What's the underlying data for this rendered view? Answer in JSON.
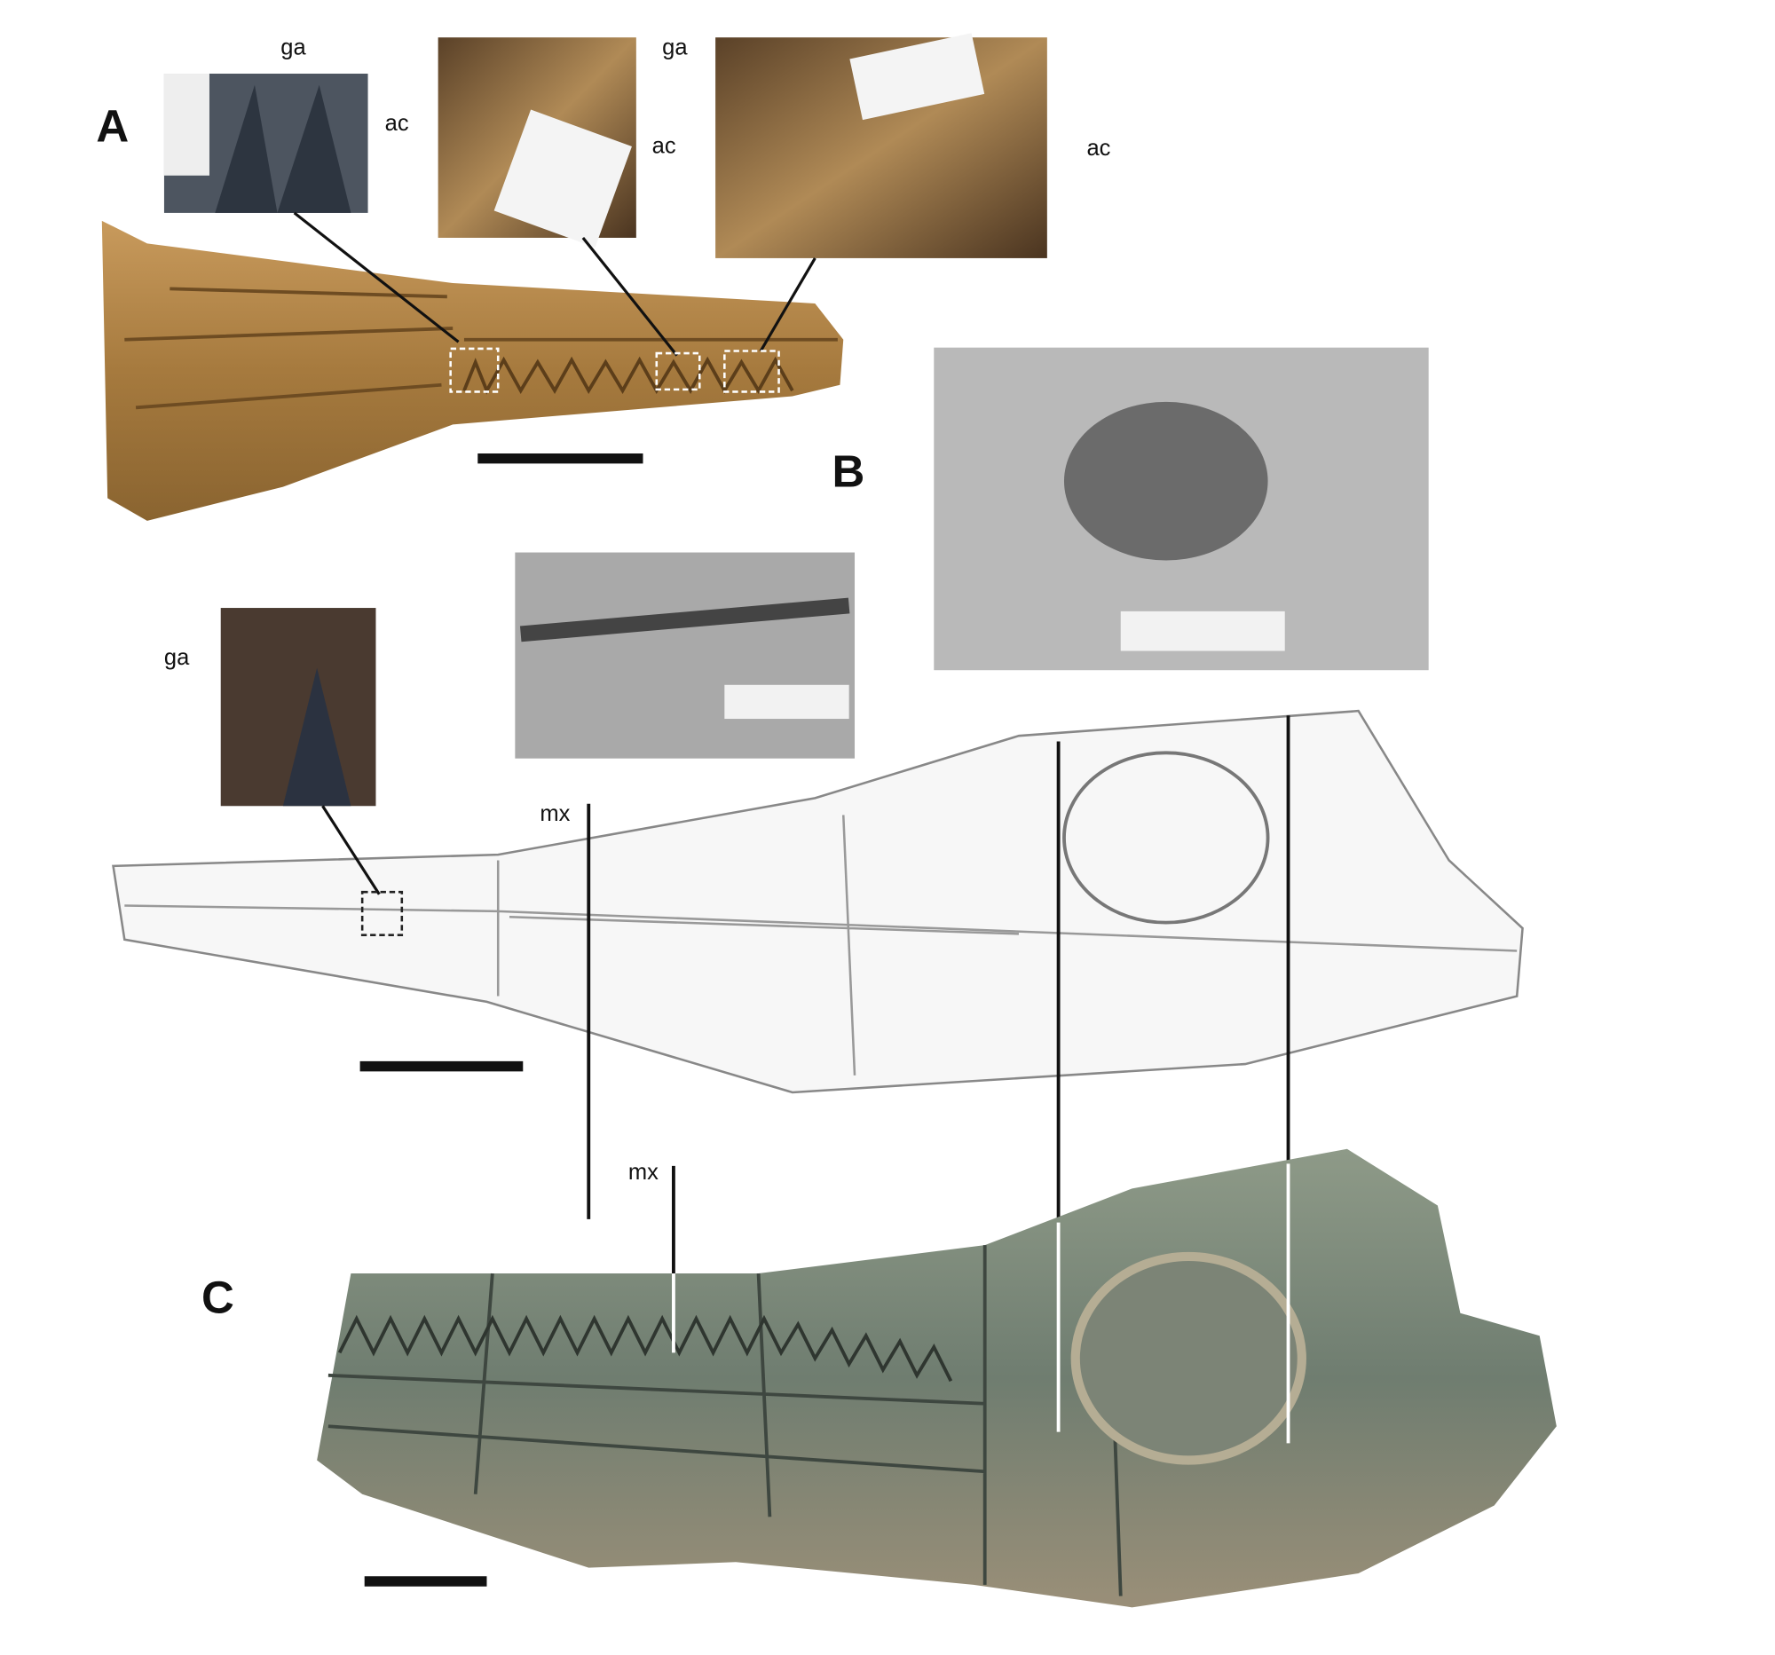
{
  "panel_labels": [
    "A",
    "B",
    "C"
  ],
  "annotations": [
    "ga",
    "ac",
    "ga",
    "ac",
    "ac",
    "ga",
    "mx",
    "mx"
  ]
}
